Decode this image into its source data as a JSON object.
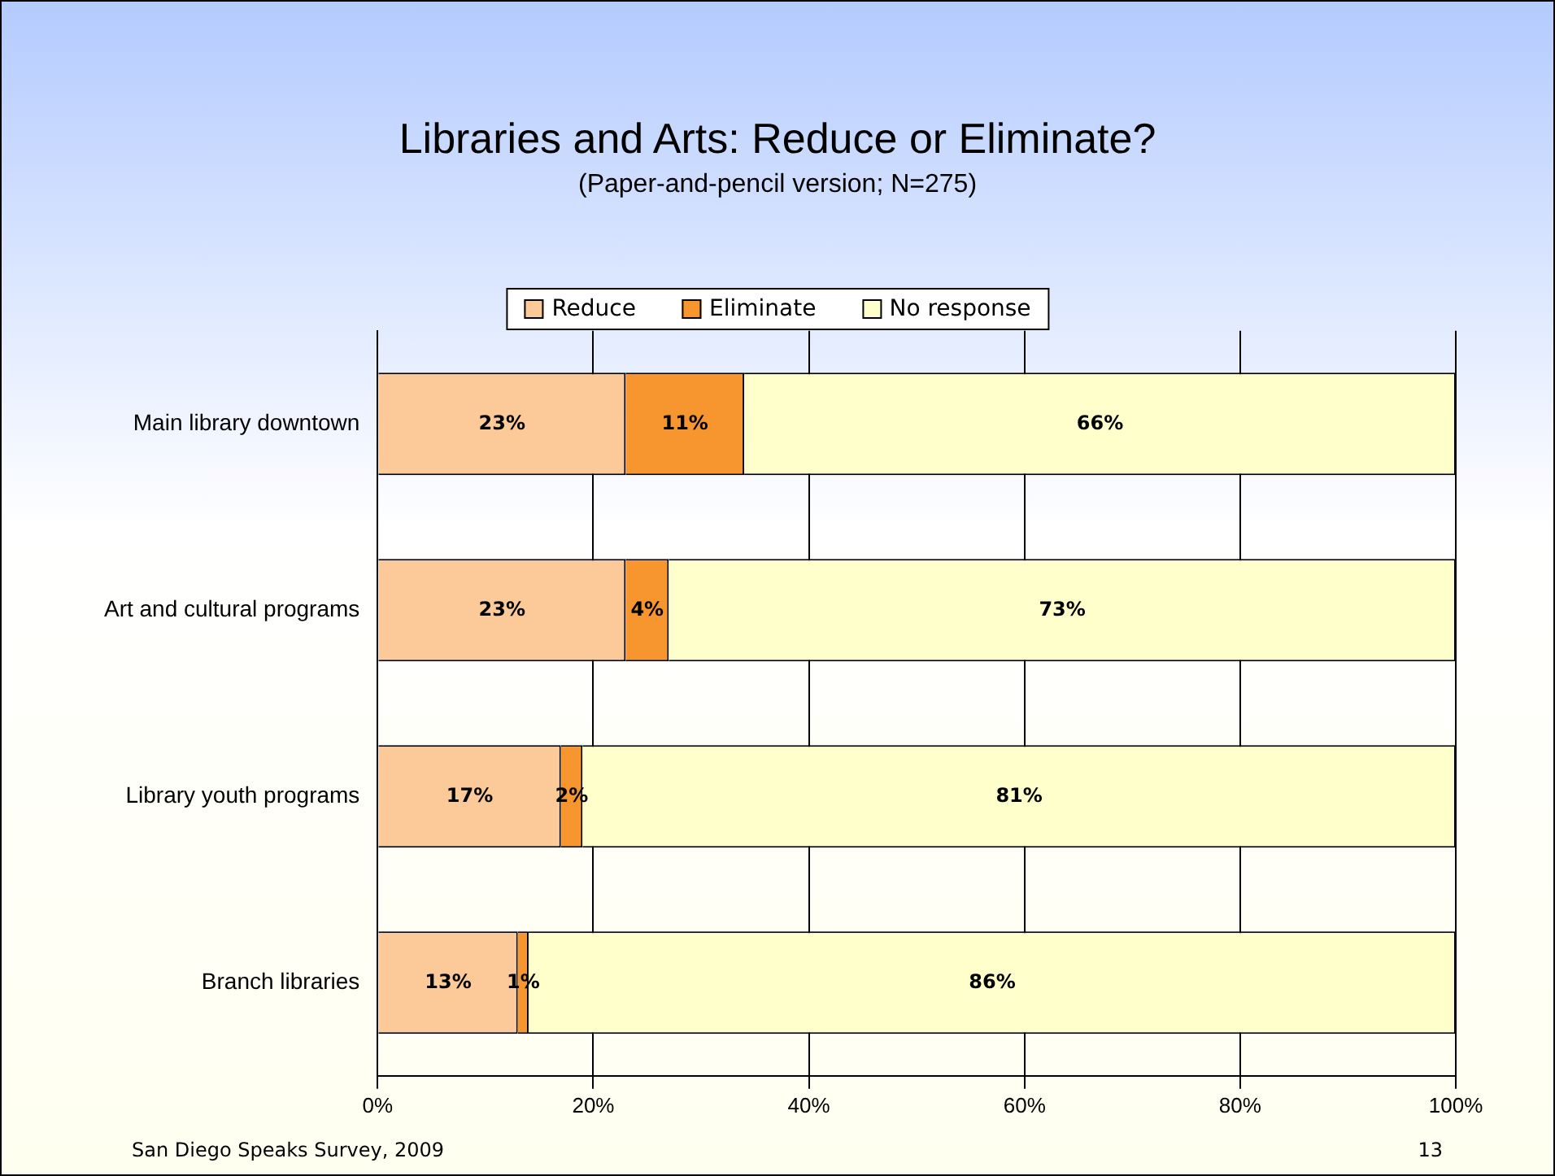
{
  "chart_data": {
    "type": "bar",
    "orientation": "horizontal",
    "stacked": true,
    "title": "Libraries and Arts: Reduce or Eliminate?",
    "subtitle": "(Paper-and-pencil version; N=275)",
    "categories": [
      "Main library downtown",
      "Art and cultural programs",
      "Library youth programs",
      "Branch libraries"
    ],
    "series": [
      {
        "name": "Reduce",
        "color": "#fcc998",
        "values": [
          23,
          23,
          17,
          13
        ],
        "value_labels": [
          "23%",
          "23%",
          "17%",
          "13%"
        ]
      },
      {
        "name": "Eliminate",
        "color": "#f7962f",
        "values": [
          11,
          4,
          2,
          1
        ],
        "value_labels": [
          "11%",
          "4%",
          "2%",
          "1%"
        ]
      },
      {
        "name": "No response",
        "color": "#ffffcc",
        "values": [
          66,
          73,
          81,
          86
        ],
        "value_labels": [
          "66%",
          "73%",
          "81%",
          "86%"
        ]
      }
    ],
    "xlim": [
      0,
      100
    ],
    "xticks": [
      {
        "value": 0,
        "label": "0%"
      },
      {
        "value": 20,
        "label": "20%"
      },
      {
        "value": 40,
        "label": "40%"
      },
      {
        "value": 60,
        "label": "60%"
      },
      {
        "value": 80,
        "label": "80%"
      },
      {
        "value": 100,
        "label": "100%"
      }
    ],
    "grid": "x",
    "legend": "top",
    "annotations": [
      "San Diego Speaks Survey, 2009",
      "13"
    ]
  }
}
